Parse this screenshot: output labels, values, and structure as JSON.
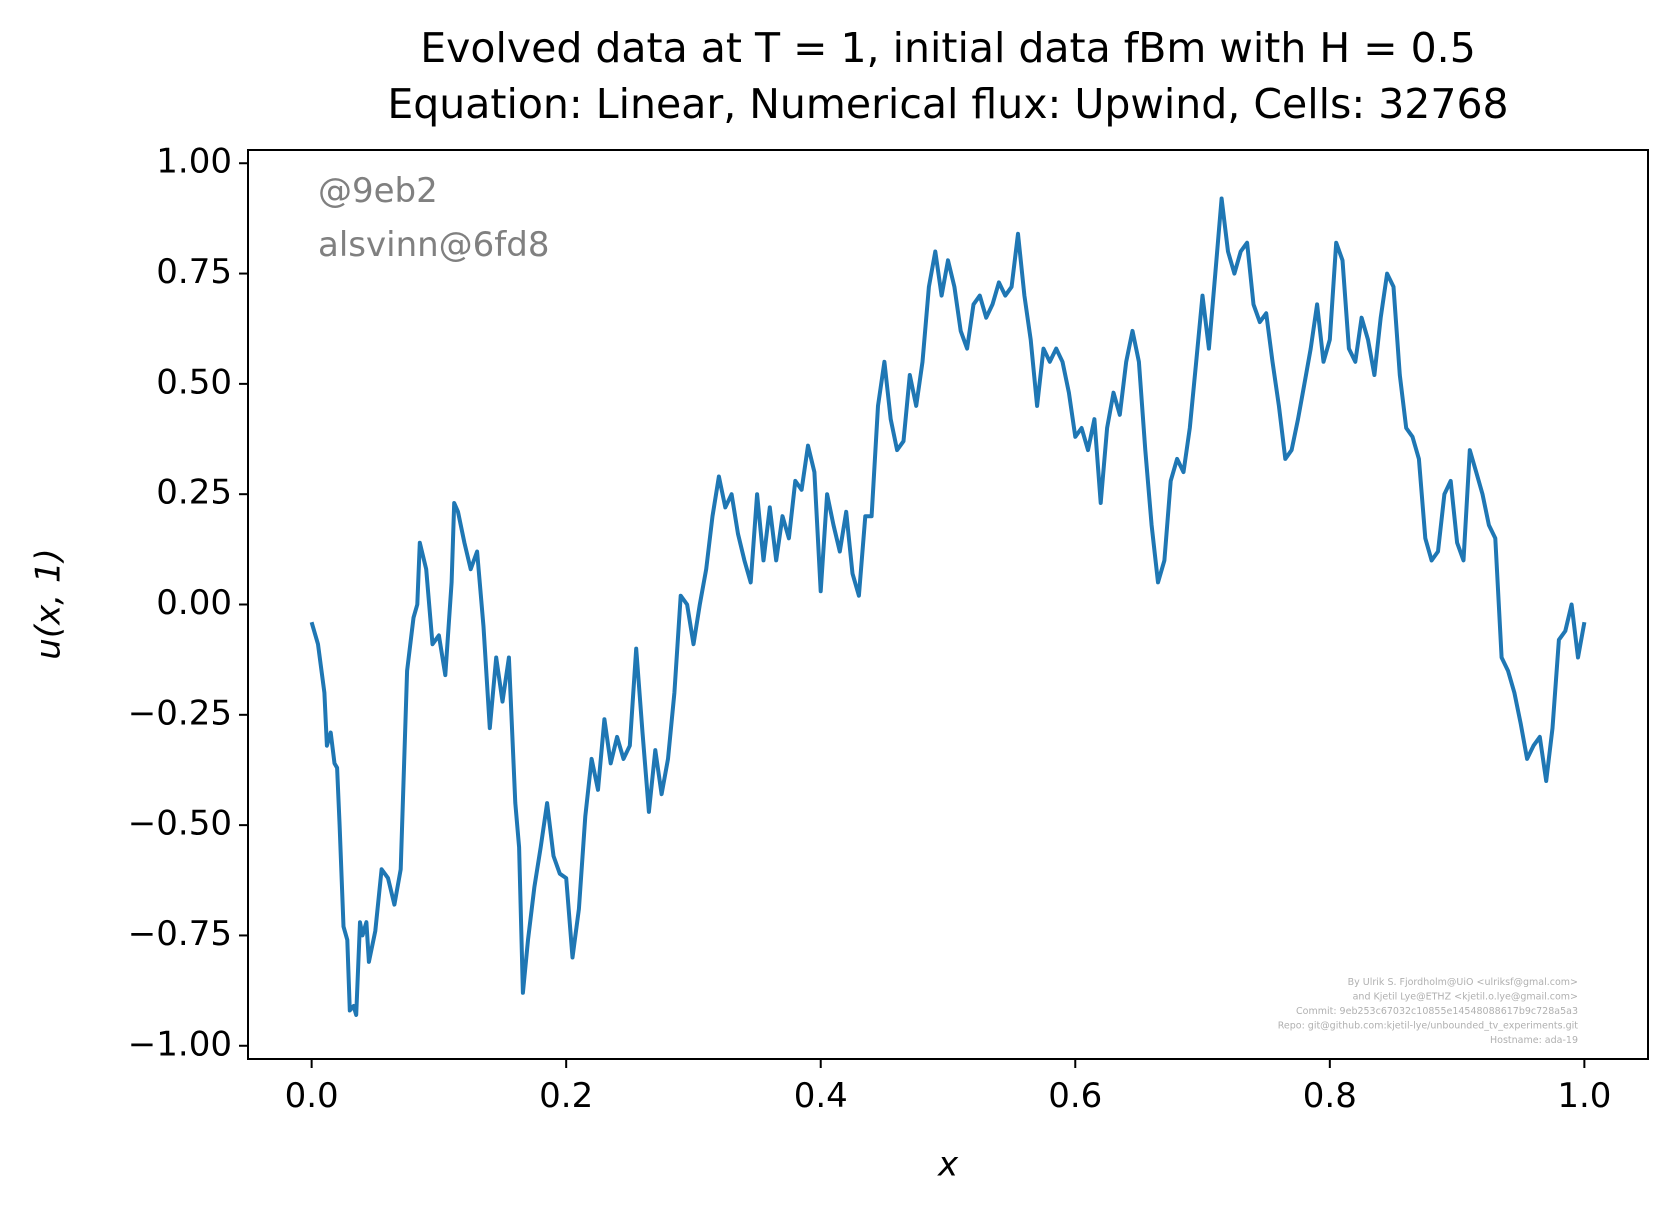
{
  "chart_data": {
    "type": "line",
    "title": "Evolved data at T = 1, initial data fBm with H = 0.5",
    "subtitle": "Equation: Linear, Numerical flux: Upwind, Cells: 32768",
    "x_label": "x",
    "y_label": "u(x, 1)",
    "annotations": [
      "@9eb2",
      "alsvinn@6fd8"
    ],
    "credits": [
      "By Ulrik S. Fjordholm@UiO <ulriksf@gmal.com>",
      "and Kjetil Lye@ETHZ <kjetil.o.lye@gmail.com>",
      "Commit: 9eb253c67032c10855e14548088617b9c728a5a3",
      "Repo: git@github.com:kjetil-lye/unbounded_tv_experiments.git",
      "Hostname: ada-19"
    ],
    "color": "#1f77b4",
    "xlim": [
      -0.05,
      1.05
    ],
    "ylim": [
      -1.03,
      1.03
    ],
    "xticks": [
      {
        "value": 0,
        "label": "0.0"
      },
      {
        "value": 0.2,
        "label": "0.2"
      },
      {
        "value": 0.4,
        "label": "0.4"
      },
      {
        "value": 0.6,
        "label": "0.6"
      },
      {
        "value": 0.8,
        "label": "0.8"
      },
      {
        "value": 1,
        "label": "1.0"
      }
    ],
    "yticks": [
      {
        "value": -1,
        "label": "−1.00"
      },
      {
        "value": -0.75,
        "label": "−0.75"
      },
      {
        "value": -0.5,
        "label": "−0.50"
      },
      {
        "value": -0.25,
        "label": "−0.25"
      },
      {
        "value": 0,
        "label": "0.00"
      },
      {
        "value": 0.25,
        "label": "0.25"
      },
      {
        "value": 0.5,
        "label": "0.50"
      },
      {
        "value": 0.75,
        "label": "0.75"
      },
      {
        "value": 1,
        "label": "1.00"
      }
    ],
    "x": [
      0,
      0.005,
      0.01,
      0.012,
      0.015,
      0.018,
      0.02,
      0.022,
      0.025,
      0.028,
      0.03,
      0.033,
      0.035,
      0.038,
      0.04,
      0.043,
      0.045,
      0.05,
      0.055,
      0.06,
      0.065,
      0.07,
      0.075,
      0.08,
      0.083,
      0.085,
      0.09,
      0.095,
      0.1,
      0.105,
      0.11,
      0.112,
      0.115,
      0.12,
      0.125,
      0.13,
      0.135,
      0.14,
      0.145,
      0.15,
      0.155,
      0.16,
      0.163,
      0.166,
      0.17,
      0.175,
      0.18,
      0.185,
      0.19,
      0.195,
      0.2,
      0.205,
      0.21,
      0.215,
      0.22,
      0.225,
      0.23,
      0.235,
      0.24,
      0.245,
      0.25,
      0.255,
      0.26,
      0.265,
      0.27,
      0.275,
      0.28,
      0.285,
      0.29,
      0.295,
      0.3,
      0.305,
      0.31,
      0.315,
      0.32,
      0.325,
      0.33,
      0.335,
      0.34,
      0.345,
      0.35,
      0.355,
      0.36,
      0.365,
      0.37,
      0.375,
      0.38,
      0.385,
      0.39,
      0.395,
      0.4,
      0.405,
      0.41,
      0.415,
      0.42,
      0.425,
      0.43,
      0.435,
      0.44,
      0.445,
      0.45,
      0.455,
      0.46,
      0.465,
      0.47,
      0.475,
      0.48,
      0.485,
      0.49,
      0.495,
      0.5,
      0.505,
      0.51,
      0.515,
      0.52,
      0.525,
      0.53,
      0.535,
      0.54,
      0.545,
      0.55,
      0.555,
      0.56,
      0.565,
      0.57,
      0.575,
      0.58,
      0.585,
      0.59,
      0.595,
      0.6,
      0.605,
      0.61,
      0.615,
      0.62,
      0.625,
      0.63,
      0.635,
      0.64,
      0.645,
      0.65,
      0.655,
      0.66,
      0.665,
      0.67,
      0.675,
      0.68,
      0.685,
      0.69,
      0.695,
      0.7,
      0.705,
      0.71,
      0.715,
      0.72,
      0.725,
      0.73,
      0.735,
      0.74,
      0.745,
      0.75,
      0.755,
      0.76,
      0.765,
      0.77,
      0.775,
      0.78,
      0.785,
      0.79,
      0.795,
      0.8,
      0.805,
      0.81,
      0.815,
      0.82,
      0.825,
      0.83,
      0.835,
      0.84,
      0.845,
      0.85,
      0.855,
      0.86,
      0.865,
      0.87,
      0.875,
      0.88,
      0.885,
      0.89,
      0.895,
      0.9,
      0.905,
      0.91,
      0.915,
      0.92,
      0.925,
      0.93,
      0.935,
      0.94,
      0.945,
      0.95,
      0.955,
      0.96,
      0.965,
      0.97,
      0.975,
      0.98,
      0.985,
      0.99,
      0.995,
      1
    ],
    "values": [
      -0.04,
      -0.09,
      -0.2,
      -0.32,
      -0.29,
      -0.36,
      -0.37,
      -0.5,
      -0.73,
      -0.76,
      -0.92,
      -0.91,
      -0.93,
      -0.72,
      -0.75,
      -0.72,
      -0.81,
      -0.74,
      -0.6,
      -0.62,
      -0.68,
      -0.6,
      -0.15,
      -0.03,
      0,
      0.14,
      0.08,
      -0.09,
      -0.07,
      -0.16,
      0.05,
      0.23,
      0.21,
      0.14,
      0.08,
      0.12,
      -0.05,
      -0.28,
      -0.12,
      -0.22,
      -0.12,
      -0.45,
      -0.55,
      -0.88,
      -0.76,
      -0.64,
      -0.55,
      -0.45,
      -0.57,
      -0.61,
      -0.62,
      -0.8,
      -0.69,
      -0.48,
      -0.35,
      -0.42,
      -0.26,
      -0.36,
      -0.3,
      -0.35,
      -0.32,
      -0.1,
      -0.29,
      -0.47,
      -0.33,
      -0.43,
      -0.35,
      -0.2,
      0.02,
      0,
      -0.09,
      0,
      0.08,
      0.2,
      0.29,
      0.22,
      0.25,
      0.16,
      0.1,
      0.05,
      0.25,
      0.1,
      0.22,
      0.1,
      0.2,
      0.15,
      0.28,
      0.26,
      0.36,
      0.3,
      0.03,
      0.25,
      0.18,
      0.12,
      0.21,
      0.07,
      0.02,
      0.2,
      0.2,
      0.45,
      0.55,
      0.42,
      0.35,
      0.37,
      0.52,
      0.45,
      0.55,
      0.72,
      0.8,
      0.7,
      0.78,
      0.72,
      0.62,
      0.58,
      0.68,
      0.7,
      0.65,
      0.68,
      0.73,
      0.7,
      0.72,
      0.84,
      0.7,
      0.6,
      0.45,
      0.58,
      0.55,
      0.58,
      0.55,
      0.48,
      0.38,
      0.4,
      0.35,
      0.42,
      0.23,
      0.4,
      0.48,
      0.43,
      0.55,
      0.62,
      0.55,
      0.35,
      0.18,
      0.05,
      0.1,
      0.28,
      0.33,
      0.3,
      0.4,
      0.55,
      0.7,
      0.58,
      0.75,
      0.92,
      0.8,
      0.75,
      0.8,
      0.82,
      0.68,
      0.64,
      0.66,
      0.55,
      0.45,
      0.33,
      0.35,
      0.42,
      0.5,
      0.58,
      0.68,
      0.55,
      0.6,
      0.82,
      0.78,
      0.58,
      0.55,
      0.65,
      0.6,
      0.52,
      0.65,
      0.75,
      0.72,
      0.52,
      0.4,
      0.38,
      0.33,
      0.15,
      0.1,
      0.12,
      0.25,
      0.28,
      0.14,
      0.1,
      0.35,
      0.3,
      0.25,
      0.18,
      0.15,
      -0.12,
      -0.15,
      -0.2,
      -0.27,
      -0.35,
      -0.32,
      -0.3,
      -0.4,
      -0.28,
      -0.08,
      -0.06,
      0,
      -0.12,
      -0.04
    ]
  }
}
